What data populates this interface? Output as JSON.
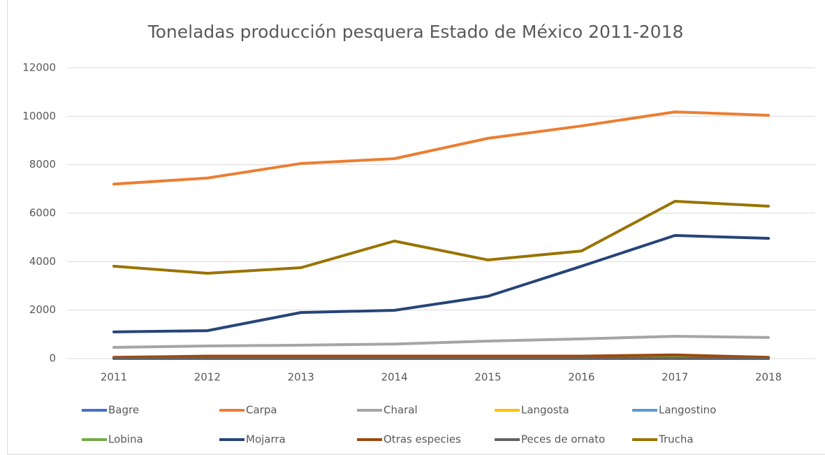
{
  "chart_data": {
    "type": "line",
    "title": "Toneladas producción pesquera Estado de México 2011-2018",
    "categories": [
      "2011",
      "2012",
      "2013",
      "2014",
      "2015",
      "2016",
      "2017",
      "2018"
    ],
    "series": [
      {
        "name": "Bagre",
        "color": "#4472c4",
        "values": [
          10,
          10,
          10,
          10,
          10,
          10,
          10,
          10
        ]
      },
      {
        "name": "Carpa",
        "color": "#ed7d31",
        "values": [
          7200,
          7450,
          8050,
          8250,
          9090,
          9600,
          10180,
          10040
        ]
      },
      {
        "name": "Charal",
        "color": "#a5a5a5",
        "values": [
          460,
          520,
          550,
          600,
          720,
          810,
          920,
          870
        ]
      },
      {
        "name": "Langosta",
        "color": "#ffc000",
        "values": [
          0,
          0,
          0,
          0,
          0,
          0,
          0,
          0
        ]
      },
      {
        "name": "Langostino",
        "color": "#5b9bd5",
        "values": [
          0,
          0,
          0,
          0,
          0,
          0,
          0,
          0
        ]
      },
      {
        "name": "Lobina",
        "color": "#70ad47",
        "values": [
          20,
          20,
          20,
          20,
          20,
          20,
          50,
          20
        ]
      },
      {
        "name": "Mojarra",
        "color": "#264478",
        "values": [
          1100,
          1150,
          1900,
          1990,
          2570,
          3810,
          5080,
          4960
        ]
      },
      {
        "name": "Otras especies",
        "color": "#9e480e",
        "values": [
          50,
          100,
          100,
          100,
          100,
          100,
          150,
          50
        ]
      },
      {
        "name": "Peces de ornato",
        "color": "#636363",
        "values": [
          5,
          5,
          5,
          5,
          5,
          5,
          5,
          5
        ]
      },
      {
        "name": "Trucha",
        "color": "#997300",
        "values": [
          3810,
          3520,
          3750,
          4850,
          4070,
          4440,
          6490,
          6290
        ]
      }
    ],
    "ylim": [
      0,
      12000
    ],
    "yticks": [
      0,
      2000,
      4000,
      6000,
      8000,
      10000,
      12000
    ],
    "grid": true
  }
}
